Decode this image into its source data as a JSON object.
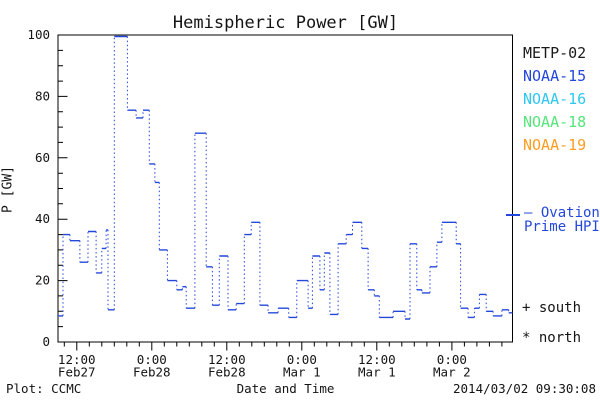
{
  "title": "Hemispheric Power [GW]",
  "y_axis": {
    "label": "P [GW]",
    "tick_labels": [
      "0",
      "20",
      "40",
      "60",
      "80",
      "100"
    ]
  },
  "x_axis": {
    "label": "Date and Time",
    "ticks": [
      {
        "time": "12:00",
        "date": "Feb27"
      },
      {
        "time": "0:00",
        "date": "Feb28"
      },
      {
        "time": "12:00",
        "date": "Feb28"
      },
      {
        "time": "0:00",
        "date": "Mar 1"
      },
      {
        "time": "12:00",
        "date": "Mar 1"
      },
      {
        "time": "0:00",
        "date": "Mar 2"
      }
    ]
  },
  "legend": {
    "satellites": [
      {
        "label": "METP-02",
        "color": "#1a1a1a"
      },
      {
        "label": "NOAA-15",
        "color": "#2447db"
      },
      {
        "label": "NOAA-16",
        "color": "#2ec8f0"
      },
      {
        "label": "NOAA-18",
        "color": "#55e57a"
      },
      {
        "label": "NOAA-19",
        "color": "#ff9e24"
      }
    ],
    "ovation_line1": "– Ovation",
    "ovation_line2": "Prime HPI",
    "ovation_color": "#2447db",
    "south": "+ south",
    "north": "* north"
  },
  "footer": {
    "left": "Plot: CCMC",
    "timestamp": "2014/03/02 09:30:08"
  },
  "colors": {
    "axis": "#000000",
    "text": "#141414",
    "background": "#ffffff"
  },
  "chart_data": {
    "type": "line",
    "style": "step-dotted",
    "title": "Hemispheric Power [GW]",
    "xlabel": "Date and Time",
    "ylabel": "P [GW]",
    "x_unit": "hours since 2014 Feb 27 00:00 UT",
    "xlim": [
      9.0,
      81.7
    ],
    "ylim": [
      0,
      100
    ],
    "y_major_step": 20,
    "y_minor_step": 5,
    "x_major_ticks_hours": [
      12,
      24,
      36,
      48,
      60,
      72
    ],
    "x_minor_step_hours": 2,
    "grid": false,
    "legend_position": "right",
    "series": [
      {
        "name": "Ovation Prime HPI",
        "color": "#2447db",
        "units": "GW",
        "points": [
          [
            9.0,
            8.5
          ],
          [
            9.8,
            35
          ],
          [
            10.9,
            33
          ],
          [
            12.5,
            26
          ],
          [
            13.8,
            36
          ],
          [
            15.1,
            22.5
          ],
          [
            16.0,
            30.5
          ],
          [
            16.7,
            36.5
          ],
          [
            17.0,
            10.5
          ],
          [
            18.0,
            99.5
          ],
          [
            20.1,
            75.5
          ],
          [
            21.5,
            73
          ],
          [
            22.6,
            75.5
          ],
          [
            23.6,
            58
          ],
          [
            24.5,
            52
          ],
          [
            25.2,
            30
          ],
          [
            26.5,
            20
          ],
          [
            28.0,
            17
          ],
          [
            28.9,
            18
          ],
          [
            29.5,
            11
          ],
          [
            30.9,
            68
          ],
          [
            32.7,
            24.5
          ],
          [
            33.7,
            12
          ],
          [
            34.8,
            28
          ],
          [
            36.2,
            10.5
          ],
          [
            37.5,
            12.5
          ],
          [
            38.8,
            35
          ],
          [
            39.9,
            39
          ],
          [
            41.3,
            12
          ],
          [
            42.6,
            9.5
          ],
          [
            44.2,
            11
          ],
          [
            45.9,
            8
          ],
          [
            47.2,
            20
          ],
          [
            49.0,
            11
          ],
          [
            49.7,
            28
          ],
          [
            50.9,
            17
          ],
          [
            51.6,
            29
          ],
          [
            52.5,
            9
          ],
          [
            53.8,
            32
          ],
          [
            55.1,
            35
          ],
          [
            56.1,
            39
          ],
          [
            57.6,
            30.5
          ],
          [
            58.6,
            17
          ],
          [
            59.6,
            15
          ],
          [
            60.4,
            8
          ],
          [
            62.6,
            10
          ],
          [
            64.5,
            7.5
          ],
          [
            65.3,
            32
          ],
          [
            66.4,
            17
          ],
          [
            67.2,
            16
          ],
          [
            68.5,
            24.5
          ],
          [
            69.6,
            32.5
          ],
          [
            70.4,
            39
          ],
          [
            72.7,
            32
          ],
          [
            73.4,
            11
          ],
          [
            74.6,
            8
          ],
          [
            75.6,
            11
          ],
          [
            76.4,
            15.5
          ],
          [
            77.5,
            10
          ],
          [
            78.6,
            8.5
          ],
          [
            80.0,
            10.5
          ],
          [
            81.1,
            9.5
          ]
        ]
      }
    ]
  }
}
